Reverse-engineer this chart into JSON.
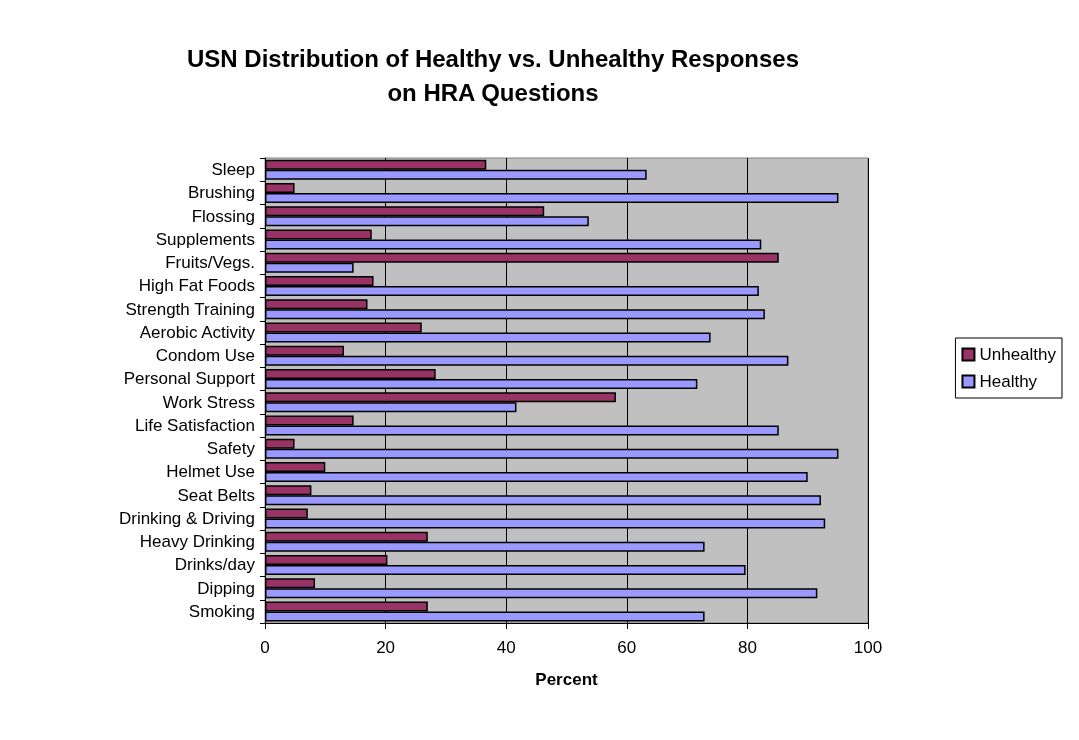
{
  "chart_data": {
    "type": "bar",
    "orientation": "horizontal",
    "title": "USN Distribution of Healthy vs. Unhealthy Responses\non HRA Questions",
    "xlabel": "Percent",
    "categories": [
      "Sleep",
      "Brushing",
      "Flossing",
      "Supplements",
      "Fruits/Vegs.",
      "High Fat Foods",
      "Strength Training",
      "Aerobic Activity",
      "Condom Use",
      "Personal Support",
      "Work Stress",
      "Life Satisfaction",
      "Safety",
      "Helmet Use",
      "Seat Belts",
      "Drinking & Driving",
      "Heavy Drinking",
      "Drinks/day",
      "Dipping",
      "Smoking"
    ],
    "series": [
      {
        "name": "Unhealthy",
        "color": "#993366",
        "values": [
          36.7,
          4.9,
          46.3,
          17.7,
          85.2,
          18,
          17,
          26,
          13.1,
          28.3,
          58.2,
          14.7,
          4.9,
          10,
          7.7,
          7.1,
          27,
          20.3,
          8.3,
          27
        ]
      },
      {
        "name": "Healthy",
        "color": "#9999ff",
        "values": [
          63.3,
          95.1,
          53.7,
          82.3,
          14.7,
          81.9,
          82.9,
          73.9,
          86.8,
          71.7,
          41.7,
          85.2,
          95.1,
          90,
          92.2,
          92.9,
          72.9,
          79.7,
          91.6,
          72.9
        ]
      }
    ],
    "xlim": [
      0,
      100
    ],
    "xticks": [
      0,
      20,
      40,
      60,
      80,
      100
    ],
    "grid": "x",
    "legend": "right"
  }
}
